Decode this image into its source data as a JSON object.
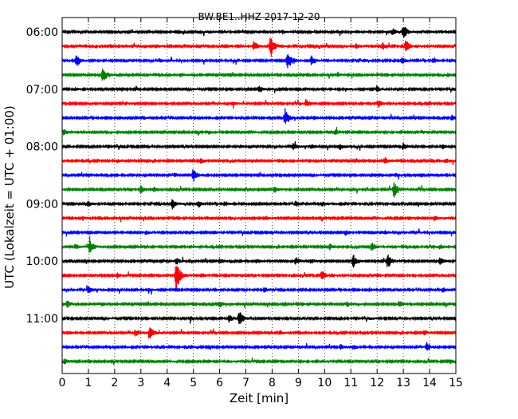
{
  "chart_data": {
    "type": "line",
    "title": "BW.BE1..HHZ 2017-12-20",
    "xlabel": "Zeit  [min]",
    "ylabel": "UTC (Lokalzeit = UTC + 01:00)",
    "xlim": [
      0,
      15
    ],
    "x_ticks": [
      "0",
      "1",
      "2",
      "3",
      "4",
      "5",
      "6",
      "7",
      "8",
      "9",
      "10",
      "11",
      "12",
      "13",
      "14",
      "15"
    ],
    "y_ticks": [
      "06:00",
      "07:00",
      "08:00",
      "09:00",
      "10:00",
      "11:00"
    ],
    "grid": "vertical dotted",
    "trace_colors": [
      "#000000",
      "#ff0000",
      "#0000ff",
      "#008000"
    ],
    "traces": [
      {
        "events": [
          [
            13.0,
            9
          ],
          [
            12.6,
            4
          ],
          [
            5.6,
            2
          ],
          [
            8.4,
            2
          ]
        ]
      },
      {
        "events": [
          [
            7.95,
            14
          ],
          [
            7.3,
            6
          ],
          [
            13.1,
            8
          ],
          [
            12.2,
            4
          ],
          [
            3.6,
            2
          ],
          [
            11.2,
            3
          ]
        ]
      },
      {
        "events": [
          [
            0.55,
            9
          ],
          [
            8.6,
            12
          ],
          [
            9.5,
            6
          ],
          [
            12.95,
            4
          ],
          [
            14.15,
            4
          ],
          [
            11.5,
            2
          ],
          [
            3.7,
            2
          ]
        ]
      },
      {
        "events": [
          [
            1.55,
            9
          ],
          [
            4.5,
            2
          ],
          [
            10.5,
            2
          ],
          [
            14.7,
            2
          ]
        ]
      },
      {
        "events": [
          [
            7.5,
            4
          ],
          [
            12.0,
            4
          ],
          [
            0.5,
            2
          ],
          [
            10.8,
            2
          ]
        ]
      },
      {
        "events": [
          [
            9.3,
            5
          ],
          [
            12.05,
            5
          ],
          [
            6.5,
            2
          ],
          [
            2.2,
            2
          ]
        ]
      },
      {
        "events": [
          [
            8.5,
            12
          ],
          [
            14.85,
            3
          ],
          [
            3.1,
            2
          ],
          [
            9.6,
            2
          ]
        ]
      },
      {
        "events": [
          [
            0.05,
            4
          ],
          [
            10.4,
            3
          ],
          [
            13.7,
            2
          ],
          [
            5.6,
            2
          ]
        ]
      },
      {
        "events": [
          [
            8.8,
            4
          ],
          [
            10.6,
            4
          ],
          [
            13.0,
            4
          ],
          [
            14.5,
            3
          ],
          [
            6.8,
            2
          ],
          [
            9.5,
            2
          ]
        ]
      },
      {
        "events": [
          [
            5.3,
            4
          ],
          [
            12.3,
            4
          ],
          [
            14.6,
            3
          ],
          [
            2.1,
            2
          ]
        ]
      },
      {
        "events": [
          [
            5.0,
            8
          ],
          [
            4.3,
            2
          ],
          [
            12.7,
            2
          ]
        ]
      },
      {
        "events": [
          [
            3.0,
            5
          ],
          [
            12.65,
            10
          ],
          [
            8.1,
            4
          ],
          [
            3.5,
            3
          ],
          [
            11.8,
            2
          ]
        ]
      },
      {
        "events": [
          [
            4.2,
            6
          ],
          [
            5.2,
            4
          ],
          [
            1.0,
            3
          ],
          [
            8.9,
            3
          ],
          [
            6.2,
            3
          ],
          [
            9.9,
            3
          ]
        ]
      },
      {
        "events": [
          [
            14.2,
            4
          ],
          [
            13.2,
            2
          ],
          [
            0.8,
            2
          ],
          [
            7.8,
            2
          ]
        ]
      },
      {
        "events": [
          [
            3.2,
            2
          ],
          [
            10.8,
            3
          ],
          [
            12.3,
            2
          ],
          [
            5.8,
            2
          ]
        ]
      },
      {
        "events": [
          [
            1.05,
            9
          ],
          [
            11.8,
            5
          ],
          [
            0.5,
            3
          ],
          [
            10.2,
            4
          ],
          [
            14.4,
            3
          ],
          [
            4.9,
            2
          ]
        ]
      },
      {
        "events": [
          [
            4.35,
            4
          ],
          [
            11.1,
            9
          ],
          [
            12.4,
            9
          ],
          [
            8.9,
            4
          ],
          [
            14.4,
            4
          ],
          [
            6.0,
            3
          ],
          [
            9.5,
            3
          ],
          [
            7.4,
            3
          ]
        ]
      },
      {
        "events": [
          [
            4.35,
            22
          ],
          [
            9.9,
            6
          ],
          [
            5.3,
            3
          ],
          [
            2.1,
            3
          ],
          [
            12.0,
            2
          ]
        ]
      },
      {
        "events": [
          [
            1.0,
            4
          ],
          [
            14.5,
            3
          ],
          [
            3.3,
            2
          ],
          [
            7.7,
            3
          ],
          [
            11.7,
            2
          ]
        ]
      },
      {
        "events": [
          [
            0.2,
            4
          ],
          [
            6.0,
            4
          ],
          [
            10.85,
            3
          ],
          [
            12.85,
            4
          ],
          [
            1.5,
            2
          ],
          [
            8.5,
            2
          ]
        ]
      },
      {
        "events": [
          [
            6.75,
            10
          ],
          [
            6.35,
            5
          ],
          [
            4.9,
            2
          ],
          [
            11.7,
            2
          ]
        ]
      },
      {
        "events": [
          [
            3.35,
            7
          ],
          [
            2.8,
            4
          ],
          [
            13.8,
            3
          ],
          [
            8.3,
            2
          ]
        ]
      },
      {
        "events": [
          [
            13.9,
            6
          ],
          [
            10.6,
            3
          ],
          [
            11.1,
            3
          ],
          [
            4.9,
            2
          ]
        ]
      },
      {
        "events": [
          [
            0.1,
            3
          ],
          [
            14.8,
            3
          ],
          [
            6.3,
            2
          ],
          [
            9.9,
            2
          ]
        ]
      }
    ]
  }
}
